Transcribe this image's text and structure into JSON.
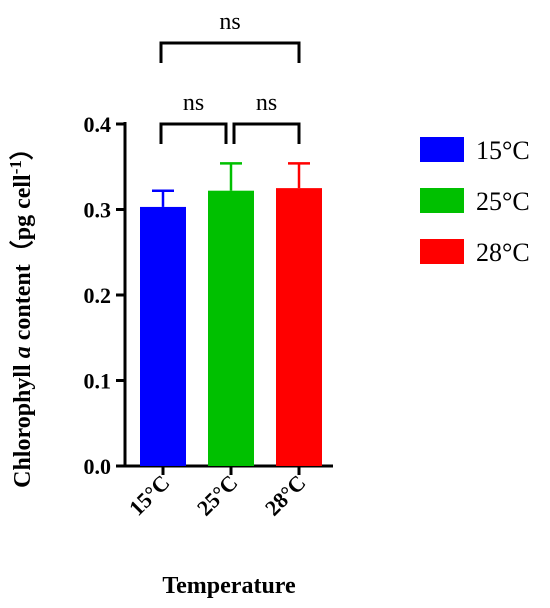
{
  "chart_data": {
    "type": "bar",
    "categories": [
      "15°C",
      "25°C",
      "28°C"
    ],
    "series": [
      {
        "name": "15°C",
        "color": "#0000ff",
        "value": 0.303,
        "error": 0.019
      },
      {
        "name": "25°C",
        "color": "#00c000",
        "value": 0.322,
        "error": 0.032
      },
      {
        "name": "28°C",
        "color": "#ff0000",
        "value": 0.325,
        "error": 0.029
      }
    ],
    "values": [
      0.303,
      0.322,
      0.325
    ],
    "errors": [
      0.019,
      0.032,
      0.029
    ],
    "ylim": [
      0,
      0.4
    ],
    "yticks": [
      "0.0",
      "0.1",
      "0.2",
      "0.3",
      "0.4"
    ],
    "xlabel": "Temperature",
    "ylabel": {
      "prefix": "Chlorophyll ",
      "italic": "a",
      "middle": " content（pg cell",
      "superscript": "-1",
      "suffix": "）"
    },
    "legend_position": "right",
    "grid": false,
    "significance": [
      {
        "pair": [
          0,
          2
        ],
        "label": "ns"
      },
      {
        "pair": [
          0,
          1
        ],
        "label": "ns"
      },
      {
        "pair": [
          1,
          2
        ],
        "label": "ns"
      }
    ]
  }
}
